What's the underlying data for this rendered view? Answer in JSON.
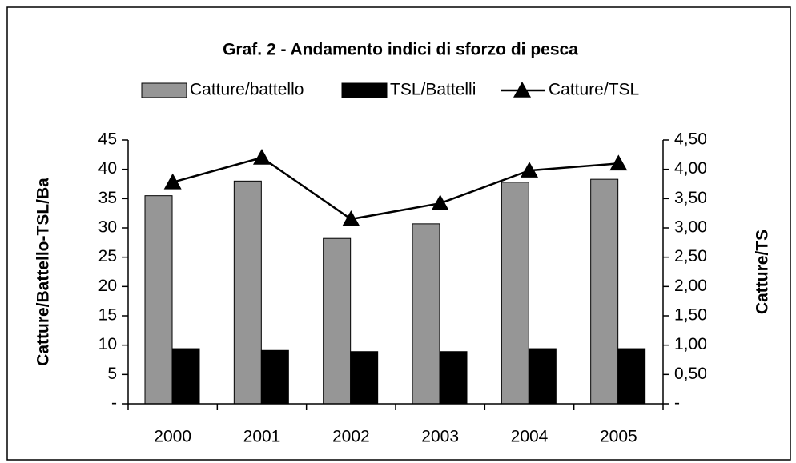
{
  "chart_data": {
    "type": "bar",
    "title": "Graf. 2 - Andamento indici di sforzo di pesca",
    "y_label": "Catture/Battello-TSL/Ba",
    "y2_label": "Catture/TS",
    "categories": [
      "2000",
      "2001",
      "2002",
      "2003",
      "2004",
      "2005"
    ],
    "series": [
      {
        "name": "Catture/battello",
        "type": "bar",
        "color": "#969696",
        "values": [
          35.5,
          38,
          28.2,
          30.7,
          37.8,
          38.3
        ]
      },
      {
        "name": "TSL/Battelli",
        "type": "bar",
        "color": "#000000",
        "values": [
          9.4,
          9.1,
          8.9,
          8.9,
          9.4,
          9.4
        ]
      },
      {
        "name": "Catture/TSL",
        "type": "line",
        "axis": "y2",
        "color": "#000000",
        "values": [
          3.78,
          4.2,
          3.15,
          3.42,
          3.98,
          4.1
        ]
      }
    ],
    "ylim": [
      0,
      45
    ],
    "yticks": [
      {
        "value": 0,
        "label": "-"
      },
      5,
      10,
      15,
      20,
      25,
      30,
      35,
      40,
      45
    ],
    "y2lim": [
      0,
      4.5
    ],
    "y2ticks": [
      {
        "value": 0,
        "label": "-"
      },
      {
        "value": 0.5,
        "label": "0,50"
      },
      {
        "value": 1,
        "label": "1,00"
      },
      {
        "value": 1.5,
        "label": "1,50"
      },
      {
        "value": 2,
        "label": "2,00"
      },
      {
        "value": 2.5,
        "label": "2,50"
      },
      {
        "value": 3,
        "label": "3,00"
      },
      {
        "value": 3.5,
        "label": "3,50"
      },
      {
        "value": 4,
        "label": "4,00"
      },
      {
        "value": 4.5,
        "label": "4,50"
      }
    ],
    "legend": "top",
    "grid": false
  }
}
